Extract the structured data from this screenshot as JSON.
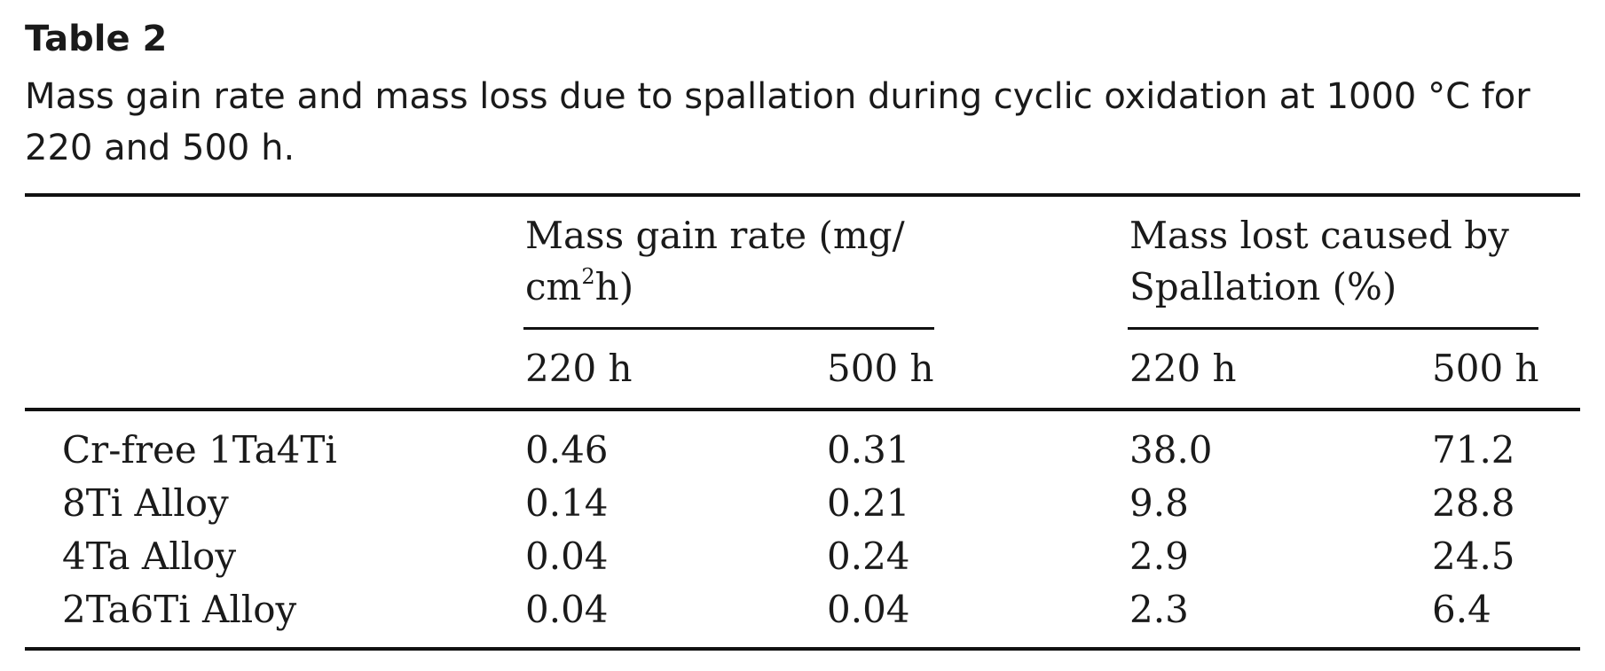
{
  "table": {
    "label": "Table 2",
    "caption": "Mass gain rate and mass loss due to spallation during cyclic oxidation at 1000 °C for 220 and 500 h.",
    "groups": [
      {
        "line1": "Mass gain rate (mg/",
        "line2_pre": "cm",
        "line2_sup": "2",
        "line2_post": "h)"
      },
      {
        "line1": "Mass lost caused by",
        "line2": "Spallation (%)"
      }
    ],
    "subheaders": [
      "220 h",
      "500 h",
      "220 h",
      "500 h"
    ],
    "rows": [
      {
        "label": "Cr-free 1Ta4Ti",
        "values": [
          "0.46",
          "0.31",
          "38.0",
          "71.2"
        ]
      },
      {
        "label": "8Ti Alloy",
        "values": [
          "0.14",
          "0.21",
          "9.8",
          "28.8"
        ]
      },
      {
        "label": "4Ta Alloy",
        "values": [
          "0.04",
          "0.24",
          "2.9",
          "24.5"
        ]
      },
      {
        "label": "2Ta6Ti Alloy",
        "values": [
          "0.04",
          "0.04",
          "2.3",
          "6.4"
        ]
      }
    ]
  }
}
